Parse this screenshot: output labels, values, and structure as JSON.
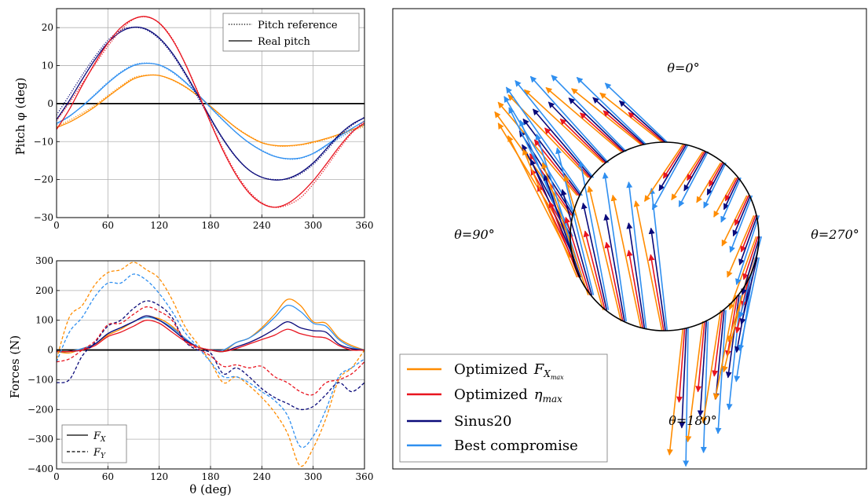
{
  "colors": {
    "orange": "#ff8c00",
    "red": "#e8141f",
    "navy": "#0a0a7a",
    "lightblue": "#2f8ff0"
  },
  "chart_data": [
    {
      "id": "pitch",
      "type": "line",
      "title": "",
      "xlabel": "",
      "ylabel": "Pitch φ (deg)",
      "xlim": [
        0,
        360
      ],
      "ylim": [
        -30,
        25
      ],
      "xticks": [
        0,
        60,
        120,
        180,
        240,
        300,
        360
      ],
      "yticks": [
        20,
        10,
        0,
        -10,
        -20,
        -30
      ],
      "grid": true,
      "legend_placement": "top-right",
      "legend": [
        {
          "label": "Pitch reference",
          "style": "dotted"
        },
        {
          "label": "Real pitch",
          "style": "solid"
        }
      ],
      "x": [
        0,
        15,
        30,
        45,
        60,
        75,
        90,
        105,
        120,
        135,
        150,
        165,
        180,
        195,
        210,
        225,
        240,
        255,
        270,
        285,
        300,
        315,
        330,
        345,
        360
      ],
      "series": [
        {
          "color_key": "orange",
          "style": "dotted",
          "values": [
            -6.0,
            -4.4,
            -2.5,
            -0.4,
            2.1,
            4.6,
            6.8,
            7.5,
            7.4,
            6.2,
            4.4,
            2.0,
            -0.8,
            -3.7,
            -6.3,
            -8.5,
            -10.2,
            -11.1,
            -11.2,
            -10.9,
            -10.3,
            -9.4,
            -8.4,
            -7.2,
            -6.0
          ]
        },
        {
          "color_key": "orange",
          "style": "solid",
          "values": [
            -6.3,
            -4.9,
            -3.0,
            -0.8,
            1.8,
            4.3,
            6.5,
            7.4,
            7.4,
            6.3,
            4.5,
            2.1,
            -0.7,
            -3.6,
            -6.4,
            -8.6,
            -10.3,
            -11.0,
            -11.1,
            -10.8,
            -10.1,
            -9.2,
            -8.1,
            -6.9,
            -5.6
          ]
        },
        {
          "color_key": "lightblue",
          "style": "dotted",
          "values": [
            -5.5,
            -3.4,
            -0.6,
            2.5,
            5.6,
            8.3,
            10.2,
            10.7,
            10.1,
            8.3,
            5.6,
            2.4,
            -1.1,
            -4.5,
            -7.6,
            -10.3,
            -12.3,
            -13.8,
            -14.6,
            -14.4,
            -13.2,
            -11.3,
            -9.2,
            -7.2,
            -5.5
          ]
        },
        {
          "color_key": "lightblue",
          "style": "solid",
          "values": [
            -5.2,
            -3.3,
            -0.7,
            2.3,
            5.4,
            8.1,
            10.0,
            10.6,
            10.2,
            8.5,
            5.8,
            2.5,
            -1.0,
            -4.4,
            -7.6,
            -10.3,
            -12.4,
            -13.9,
            -14.5,
            -14.3,
            -13.1,
            -11.0,
            -8.7,
            -6.6,
            -4.6
          ]
        },
        {
          "color_key": "navy",
          "style": "dotted",
          "values": [
            -3.0,
            2.2,
            7.5,
            12.4,
            16.6,
            19.3,
            20.1,
            19.4,
            17.0,
            13.0,
            7.8,
            1.7,
            -4.2,
            -9.6,
            -14.2,
            -17.5,
            -19.4,
            -20.0,
            -19.8,
            -18.5,
            -16.0,
            -12.5,
            -8.7,
            -5.8,
            -3.6
          ]
        },
        {
          "color_key": "navy",
          "style": "solid",
          "values": [
            -4.2,
            0.8,
            6.4,
            11.6,
            16.0,
            18.9,
            20.1,
            19.6,
            17.3,
            13.4,
            8.2,
            2.3,
            -3.8,
            -9.4,
            -14.1,
            -17.5,
            -19.4,
            -20.1,
            -19.7,
            -18.2,
            -15.6,
            -12.0,
            -8.3,
            -5.5,
            -3.7
          ]
        },
        {
          "color_key": "red",
          "style": "dotted",
          "values": [
            -4.5,
            0.2,
            5.3,
            10.3,
            15.1,
            19.3,
            22.2,
            22.8,
            21.3,
            17.2,
            10.8,
            3.2,
            -4.8,
            -12.1,
            -18.4,
            -23.1,
            -26.1,
            -27.3,
            -26.7,
            -24.8,
            -21.2,
            -16.8,
            -12.1,
            -7.8,
            -4.5
          ]
        },
        {
          "color_key": "red",
          "style": "solid",
          "values": [
            -6.8,
            -1.5,
            4.8,
            10.7,
            15.9,
            20.0,
            22.3,
            22.9,
            21.2,
            17.0,
            10.7,
            3.0,
            -5.0,
            -12.5,
            -18.8,
            -23.5,
            -26.3,
            -27.3,
            -26.3,
            -23.8,
            -20.3,
            -16.0,
            -11.5,
            -7.6,
            -5.1
          ]
        }
      ]
    },
    {
      "id": "forces",
      "type": "line",
      "title": "",
      "xlabel": "θ (deg)",
      "ylabel": "Forces (N)",
      "xlim": [
        0,
        360
      ],
      "ylim": [
        -400,
        300
      ],
      "xticks": [
        0,
        60,
        120,
        180,
        240,
        300,
        360
      ],
      "yticks": [
        300,
        200,
        100,
        0,
        -100,
        -200,
        -300,
        -400
      ],
      "grid": true,
      "legend_placement": "bottom-left",
      "legend": [
        {
          "label": "F",
          "sub": "X",
          "style": "solid"
        },
        {
          "label": "F",
          "sub": "Y",
          "style": "dashed"
        }
      ],
      "x": [
        0,
        15,
        30,
        45,
        60,
        75,
        90,
        105,
        120,
        135,
        150,
        165,
        180,
        195,
        210,
        225,
        240,
        255,
        270,
        285,
        300,
        315,
        330,
        345,
        360
      ],
      "series": [
        {
          "color_key": "orange",
          "style": "solid",
          "values": [
            -5,
            -10,
            5,
            20,
            50,
            70,
            95,
            110,
            105,
            80,
            40,
            10,
            0,
            -5,
            25,
            40,
            75,
            120,
            170,
            150,
            95,
            90,
            40,
            15,
            0
          ]
        },
        {
          "color_key": "lightblue",
          "style": "solid",
          "values": [
            -5,
            -5,
            5,
            20,
            55,
            75,
            95,
            110,
            100,
            75,
            40,
            10,
            0,
            0,
            25,
            40,
            70,
            110,
            150,
            130,
            90,
            80,
            35,
            10,
            0
          ]
        },
        {
          "color_key": "navy",
          "style": "solid",
          "values": [
            -5,
            -5,
            0,
            20,
            55,
            75,
            95,
            115,
            100,
            70,
            35,
            10,
            0,
            -5,
            10,
            25,
            45,
            70,
            95,
            75,
            65,
            60,
            20,
            5,
            0
          ]
        },
        {
          "color_key": "red",
          "style": "solid",
          "values": [
            -5,
            -5,
            0,
            15,
            45,
            60,
            80,
            100,
            90,
            60,
            30,
            10,
            0,
            -5,
            5,
            20,
            35,
            50,
            70,
            55,
            45,
            40,
            15,
            0,
            0
          ]
        },
        {
          "color_key": "orange",
          "style": "dashed",
          "values": [
            -30,
            110,
            150,
            220,
            260,
            270,
            295,
            270,
            240,
            170,
            80,
            20,
            -40,
            -110,
            -90,
            -120,
            -160,
            -210,
            -280,
            -390,
            -330,
            -230,
            -100,
            -60,
            0
          ]
        },
        {
          "color_key": "lightblue",
          "style": "dashed",
          "values": [
            -40,
            60,
            110,
            180,
            225,
            225,
            255,
            235,
            190,
            130,
            60,
            10,
            -40,
            -90,
            -90,
            -110,
            -140,
            -170,
            -220,
            -325,
            -290,
            -200,
            -90,
            -60,
            -30
          ]
        },
        {
          "color_key": "navy",
          "style": "dashed",
          "values": [
            -110,
            -100,
            -20,
            25,
            80,
            100,
            140,
            165,
            150,
            110,
            30,
            0,
            -10,
            -80,
            -60,
            -90,
            -130,
            -160,
            -180,
            -200,
            -190,
            -150,
            -110,
            -140,
            -110
          ]
        },
        {
          "color_key": "red",
          "style": "dashed",
          "values": [
            -40,
            -30,
            0,
            30,
            85,
            90,
            120,
            145,
            130,
            100,
            30,
            5,
            -20,
            -55,
            -50,
            -60,
            -55,
            -90,
            -110,
            -140,
            -150,
            -110,
            -100,
            -80,
            -40
          ]
        }
      ]
    },
    {
      "id": "polar",
      "type": "other",
      "title": "",
      "labels": {
        "top": "θ=0°",
        "left": "θ=90°",
        "right": "θ=270°",
        "bottom": "θ=180°"
      },
      "legend_placement": "bottom-left",
      "legend": [
        {
          "label": "Optimized",
          "math": "F",
          "sub": "X",
          "subsub": "max",
          "color_key": "orange"
        },
        {
          "label": "Optimized",
          "math": "η",
          "sub": "max",
          "color_key": "red"
        },
        {
          "label": "Sinus20",
          "color_key": "navy"
        },
        {
          "label": "Best compromise",
          "color_key": "lightblue"
        }
      ]
    }
  ]
}
